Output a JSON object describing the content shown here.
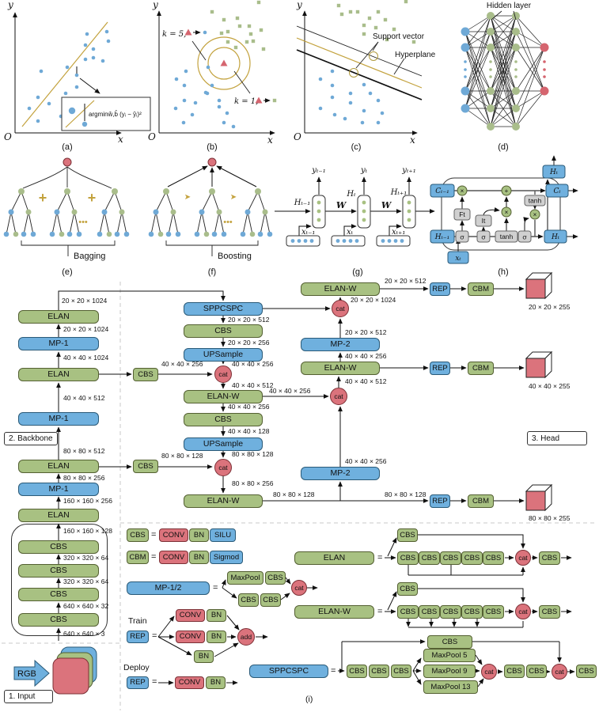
{
  "labels": {
    "elan": "ELAN",
    "elanw": "ELAN-W",
    "mp1": "MP-1",
    "mp2": "MP-2",
    "mp12": "MP-1/2",
    "cbs": "CBS",
    "cbm": "CBM",
    "rep": "REP",
    "conv": "CONV",
    "bn": "BN",
    "silu": "SILU",
    "sigmod": "Sigmod",
    "sppcspc": "SPPCSPC",
    "upsample": "UPSample",
    "cat": "cat",
    "add": "add",
    "maxpool": "MaxPool",
    "maxpool5": "MaxPool 5",
    "maxpool9": "MaxPool 9",
    "maxpool13": "MaxPool 13",
    "rgb": "RGB",
    "equals": "=",
    "train": "Train",
    "deploy": "Deploy"
  },
  "sections": {
    "input": "1. Input",
    "backbone": "2. Backbone",
    "head": "3. Head"
  },
  "dims": {
    "d20_1024": "20 × 20 × 1024",
    "d40_1024": "40 × 40 × 1024",
    "d40_512": "40 × 40 × 512",
    "d80_512": "80 × 80 × 512",
    "d80_256": "80 × 80 × 256",
    "d160_256": "160 × 160 × 256",
    "d160_128": "160 × 160 × 128",
    "d320_64": "320 × 320 × 64",
    "d640_32": "640 × 640 × 32",
    "d640_3": "640 × 640 × 3",
    "d20_512": "20 × 20 × 512",
    "d20_256": "20 × 20 × 256",
    "d40_256": "40 × 40 × 256",
    "d40_128": "40 × 40 × 128",
    "d80_128": "80 × 80 × 128",
    "d20_255": "20 × 20 × 255",
    "d40_255": "40 × 40 × 255",
    "d80_255": "80 × 80 × 255"
  },
  "panels": {
    "a": {
      "caption": "(a)",
      "axis_y": "y",
      "axis_x": "x",
      "origin": "O",
      "formula": "argminŵ,b̂ (yᵢ − ŷᵢ)²"
    },
    "b": {
      "caption": "(b)",
      "axis_y": "y",
      "axis_x": "x",
      "origin": "O",
      "k5": "k = 5,",
      "k1": "k = 1,"
    },
    "c": {
      "caption": "(c)",
      "axis_y": "y",
      "axis_x": "x",
      "origin": "O",
      "support": "Support vector",
      "hyperplane": "Hyperplane"
    },
    "d": {
      "caption": "(d)",
      "title": "Hidden layer"
    },
    "e": {
      "caption": "(e)",
      "name": "Bagging",
      "plus": "+",
      "dots": "•••"
    },
    "f": {
      "caption": "(f)",
      "name": "Boosting",
      "arrow": "➤",
      "dots": "•••"
    },
    "g": {
      "caption": "(g)",
      "w": "W",
      "y_prev": "yₜ₋₁",
      "y_cur": "yₜ",
      "y_next": "yₜ₊₁",
      "h_prev": "Hₜ₋₁",
      "h_cur": "Hₜ",
      "h_next": "Hₜ₊₁",
      "x_prev": "xₜ₋₁",
      "x_cur": "xₜ",
      "x_next": "xₜ₊₁"
    },
    "h": {
      "caption": "(h)",
      "c_prev": "Cₜ₋₁",
      "h_prev": "Hₜ₋₁",
      "x_cur": "xₜ",
      "h_top": "Hₜ",
      "c_cur": "Cₜ",
      "h_right": "Hₜ",
      "ft": "Ft",
      "it": "It",
      "tanh": "tanh",
      "sigma": "σ",
      "times": "×",
      "plus": "+"
    },
    "i": {
      "caption": "(i)"
    }
  }
}
